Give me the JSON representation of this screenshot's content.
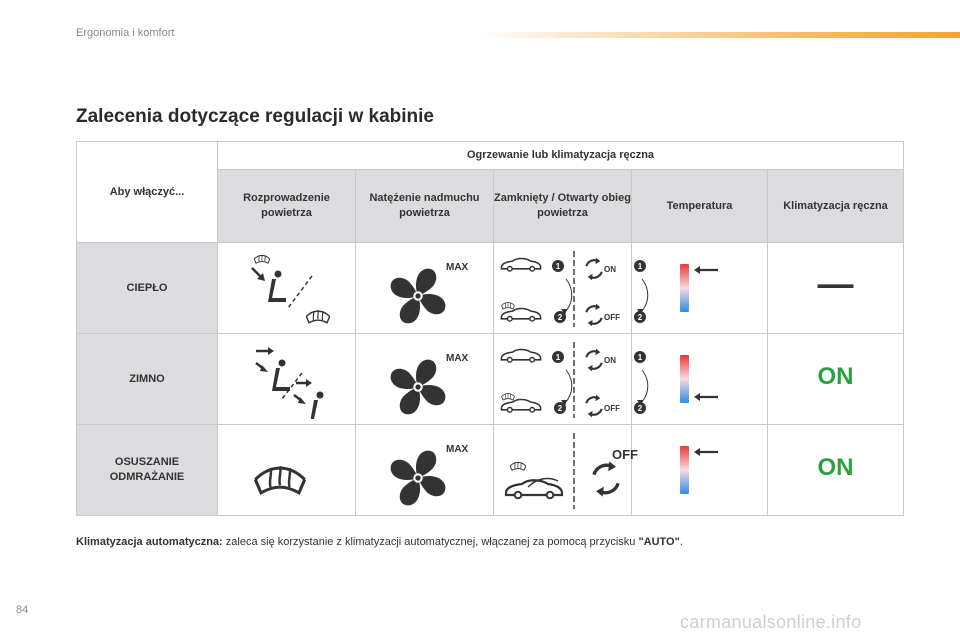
{
  "header": {
    "section": "Ergonomia i komfort"
  },
  "title": "Zalecenia dotyczące regulacji w kabinie",
  "table": {
    "corner": "Aby włączyć...",
    "group": "Ogrzewanie lub klimatyzacja ręczna",
    "columns": [
      "Rozprowadzenie powietrza",
      "Natężenie nadmuchu powietrza",
      "Zamknięty / Otwarty obieg powietrza",
      "Temperatura",
      "Klimatyzacja ręczna"
    ],
    "rows": [
      {
        "label": "CIEPŁO",
        "fan": "MAX",
        "on": "ON",
        "off": "OFF",
        "n1": "1",
        "n2": "2",
        "temperature": "hot",
        "ac": "—"
      },
      {
        "label": "ZIMNO",
        "fan": "MAX",
        "on": "ON",
        "off": "OFF",
        "n1": "1",
        "n2": "2",
        "temperature": "cold",
        "ac": "ON"
      },
      {
        "label": "OSUSZANIE\nODMRAŻANIE",
        "label_l1": "OSUSZANIE",
        "label_l2": "ODMRAŻANIE",
        "fan": "MAX",
        "off": "OFF",
        "temperature": "hot",
        "ac": "ON"
      }
    ]
  },
  "footer": {
    "bold": "Klimatyzacja automatyczna:",
    "text": " zaleca się korzystanie z klimatyzacji automatycznej, włączanej za pomocą przycisku ",
    "quote": "\"AUTO\"",
    "end": "."
  },
  "page_number": "84",
  "watermark": "carmanualsonline.info",
  "colors": {
    "accent": "#f5a13a",
    "ac_on": "#2aa040",
    "hot": "#e8393a",
    "cold": "#2d8fe0"
  }
}
